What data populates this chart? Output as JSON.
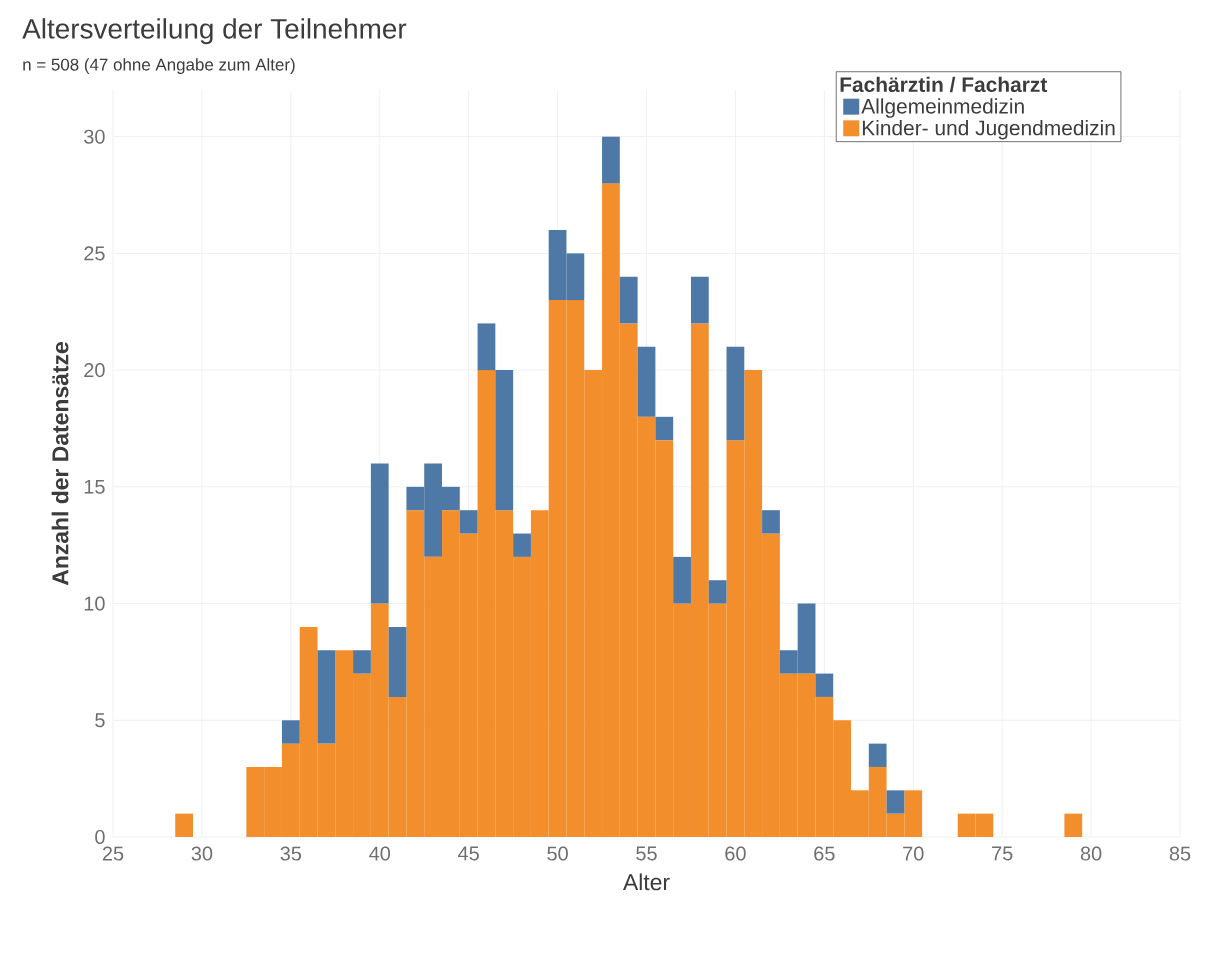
{
  "chart_data": {
    "type": "bar",
    "title": "Altersverteilung der Teilnehmer",
    "subtitle": "n = 508 (47 ohne Angabe zum Alter)",
    "xlabel": "Alter",
    "ylabel": "Anzahl der Datensätze",
    "legend_title": "Fachärztin / Facharzt",
    "x": [
      29,
      30,
      31,
      32,
      33,
      34,
      35,
      36,
      37,
      38,
      39,
      40,
      41,
      42,
      43,
      44,
      45,
      46,
      47,
      48,
      49,
      50,
      51,
      52,
      53,
      54,
      55,
      56,
      57,
      58,
      59,
      60,
      61,
      62,
      63,
      64,
      65,
      66,
      67,
      68,
      69,
      70,
      71,
      72,
      73,
      74,
      75,
      76,
      77,
      78,
      79
    ],
    "stacked": true,
    "series": [
      {
        "name": "Kinder- und Jugendmedizin",
        "color": "#f28e2b",
        "values": [
          1,
          0,
          0,
          0,
          3,
          3,
          4,
          9,
          4,
          8,
          7,
          10,
          6,
          14,
          12,
          14,
          13,
          20,
          14,
          12,
          14,
          23,
          23,
          20,
          28,
          22,
          18,
          17,
          10,
          22,
          10,
          17,
          20,
          13,
          7,
          7,
          6,
          5,
          2,
          3,
          1,
          2,
          0,
          0,
          1,
          1,
          0,
          0,
          0,
          0,
          1
        ]
      },
      {
        "name": "Allgemeinmedizin",
        "color": "#4e79a7",
        "values": [
          0,
          0,
          0,
          0,
          0,
          0,
          1,
          0,
          4,
          0,
          1,
          6,
          3,
          1,
          4,
          1,
          1,
          2,
          6,
          1,
          0,
          3,
          2,
          0,
          2,
          2,
          3,
          1,
          2,
          2,
          1,
          4,
          0,
          1,
          1,
          3,
          1,
          0,
          0,
          1,
          1,
          0,
          0,
          0,
          0,
          0,
          0,
          0,
          0,
          0,
          0
        ]
      }
    ],
    "xlim": [
      25,
      85
    ],
    "ylim": [
      0,
      32
    ],
    "xticks": [
      25,
      30,
      35,
      40,
      45,
      50,
      55,
      60,
      65,
      70,
      75,
      80,
      85
    ],
    "yticks": [
      0,
      5,
      10,
      15,
      20,
      25,
      30
    ],
    "grid": true,
    "legend": "top right"
  }
}
